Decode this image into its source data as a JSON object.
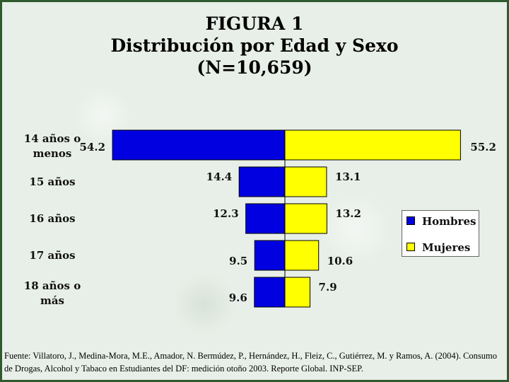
{
  "title_lines": [
    "FIGURA 1",
    "Distribución por Edad y Sexo",
    "(N=10,659)"
  ],
  "source_note": "Fuente: Villatoro, J., Medina-Mora, M.E., Amador, N. Bermúdez, P., Hernández, H., Fleiz, C., Gutiérrez, M. y Ramos, A. (2004). Consumo de Drogas, Alcohol y Tabaco en Estudiantes del DF: medición otoño 2003. Reporte Global. INP-SEP.",
  "colors": {
    "hombres": "#0000e0",
    "mujeres": "#ffff00"
  },
  "chart_data": {
    "type": "bar",
    "orientation": "horizontal-diverging",
    "categories": [
      [
        "14 años o",
        "menos"
      ],
      [
        "15 años"
      ],
      [
        "16 años"
      ],
      [
        "17 años"
      ],
      [
        "18 años o",
        "más"
      ]
    ],
    "series": [
      {
        "name": "Hombres",
        "values": [
          54.2,
          14.4,
          12.3,
          9.5,
          9.6
        ]
      },
      {
        "name": "Mujeres",
        "values": [
          55.2,
          13.1,
          13.2,
          10.6,
          7.9
        ]
      }
    ],
    "value_labels": {
      "hombres": [
        "54.2",
        "14.4",
        "12.3",
        "9.5",
        "9.6"
      ],
      "mujeres": [
        "55.2",
        "13.1",
        "13.2",
        "10.6",
        "7.9"
      ]
    },
    "legend_position": "right",
    "grid": false
  }
}
